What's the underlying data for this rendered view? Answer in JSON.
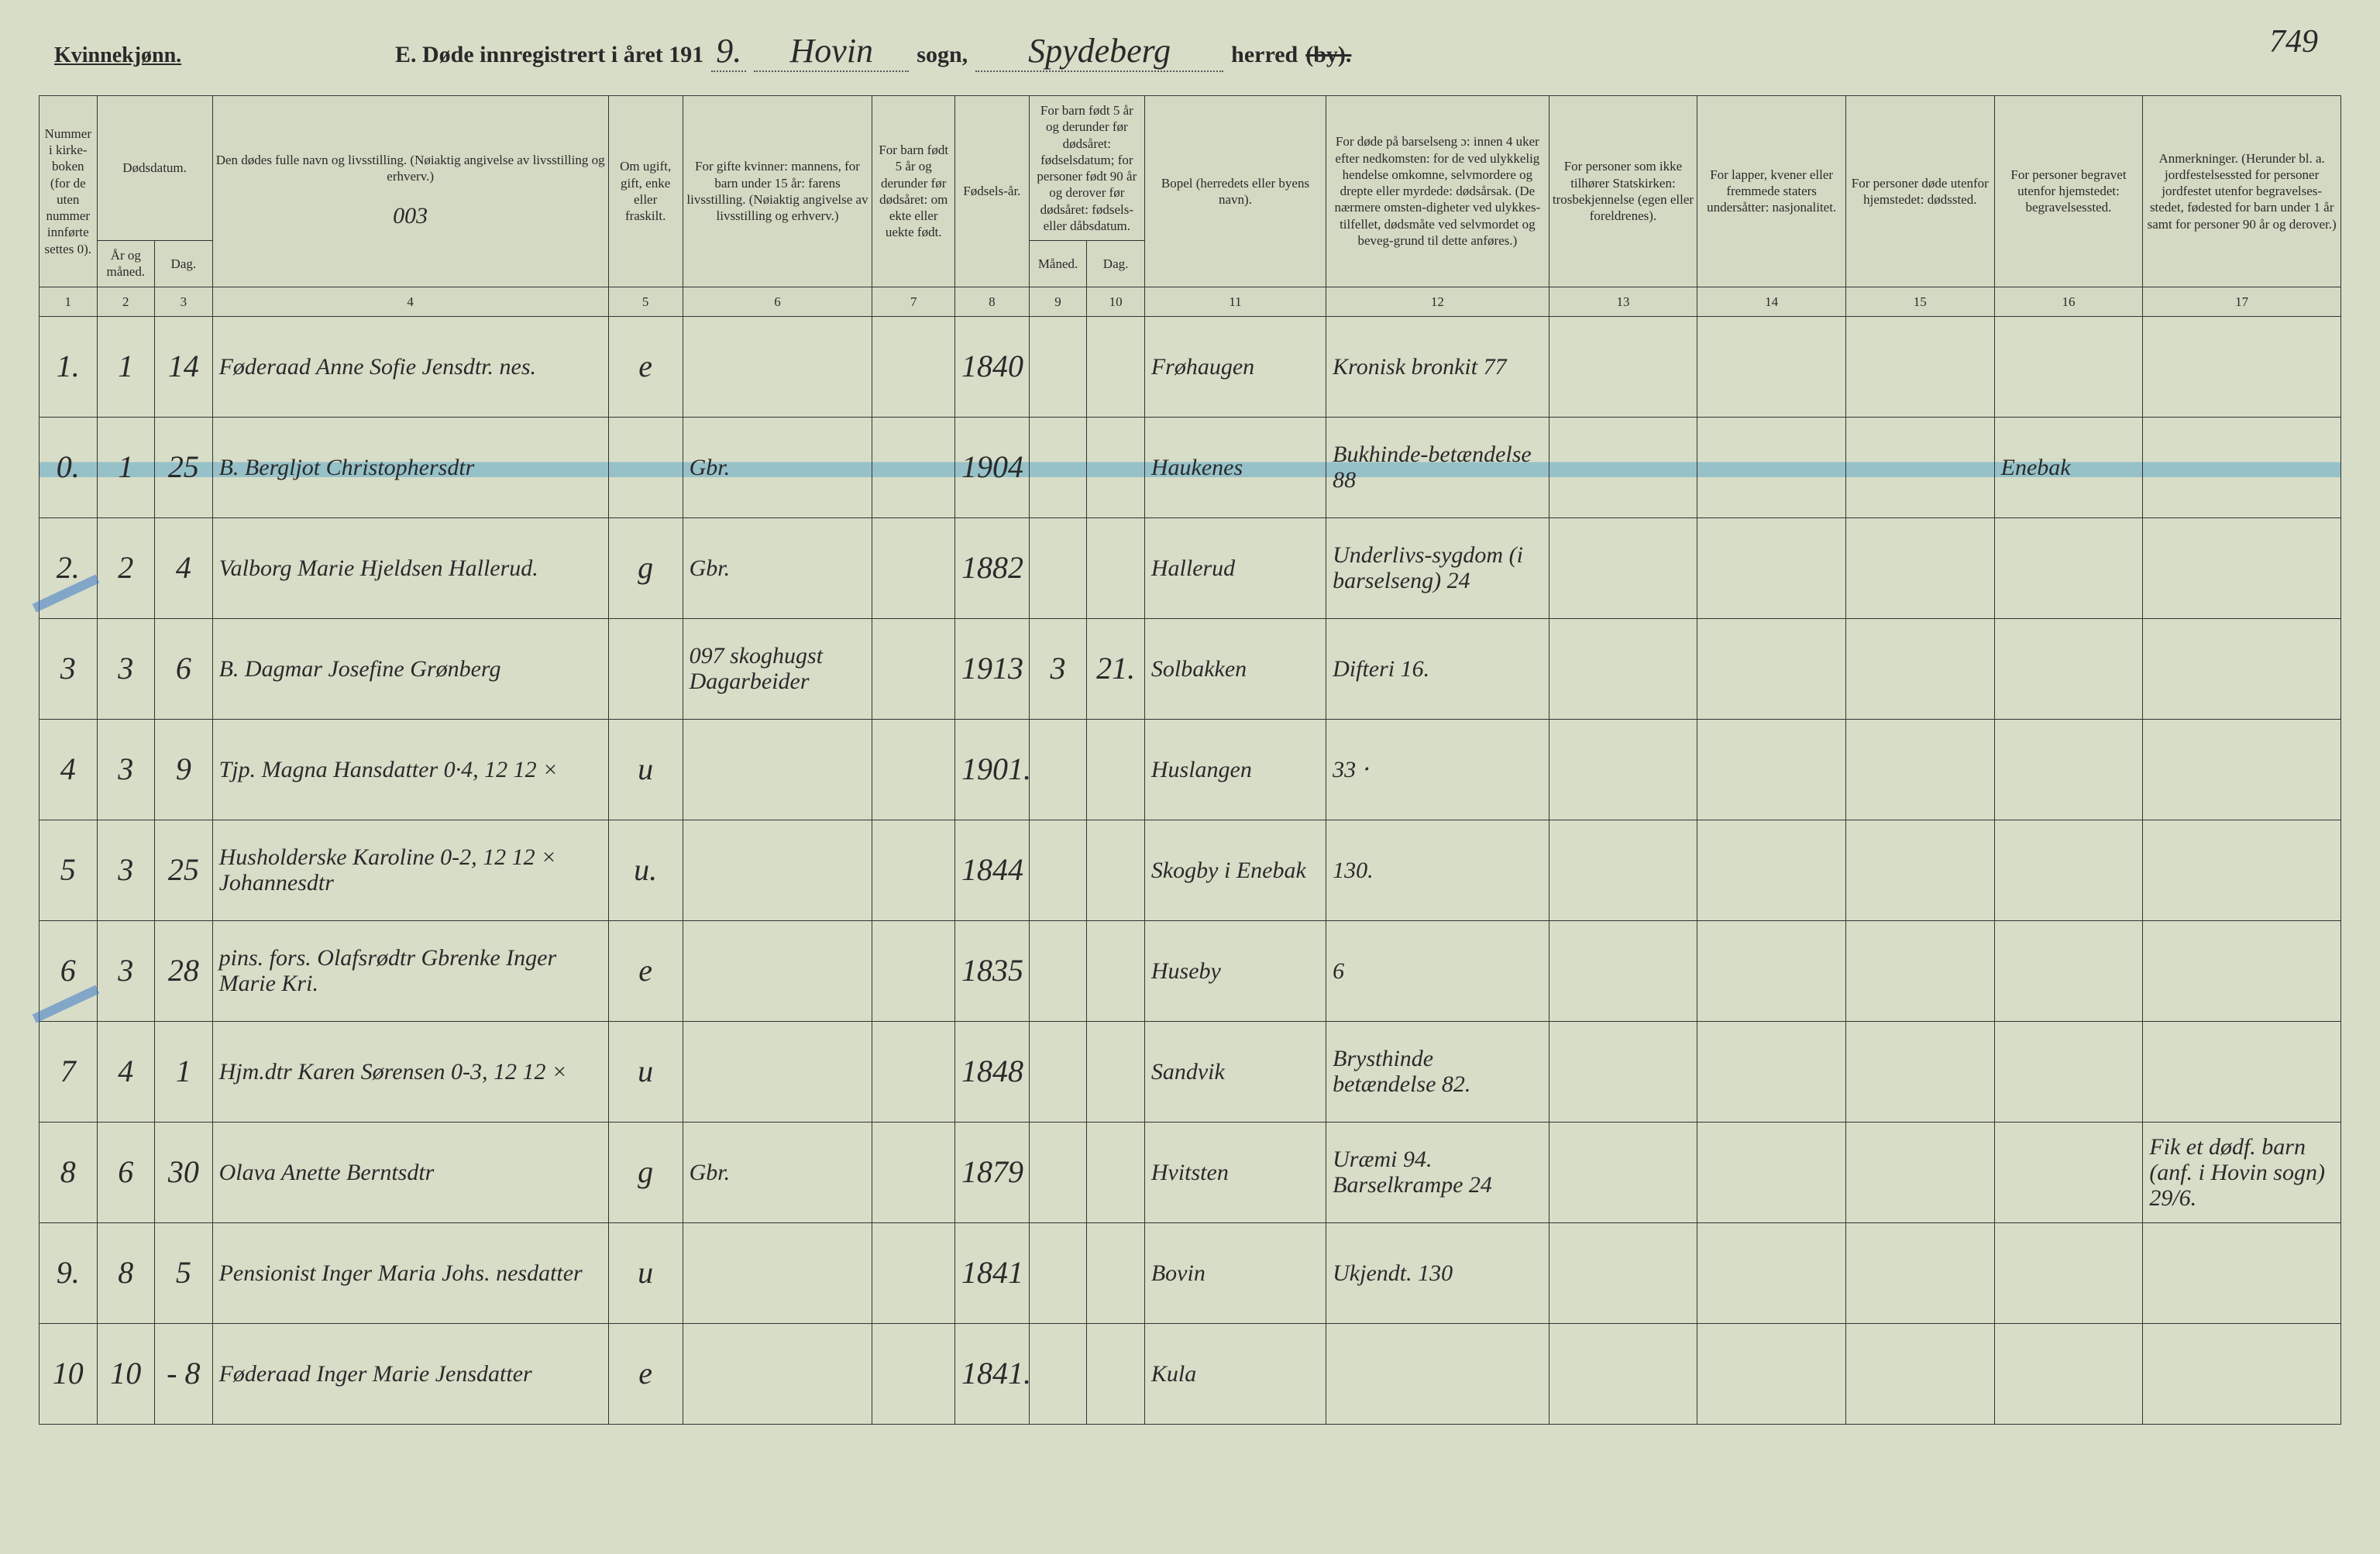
{
  "page_number": "749",
  "header": {
    "gender": "Kvinnekjønn.",
    "title_prefix": "E. Døde innregistrert i året 191",
    "year_digit": "9.",
    "parish_word": "sogn,",
    "parish_value": "Hovin",
    "district_word": "herred",
    "district_value": "Spydeberg",
    "struck_word": "(by)."
  },
  "columns": {
    "c1": "Nummer i kirke-boken (for de uten nummer innførte settes 0).",
    "c2_group": "Dødsdatum.",
    "c2": "År og måned.",
    "c3": "Dag.",
    "c4": "Den dødes fulle navn og livsstilling. (Nøiaktig angivelse av livsstilling og erhverv.)",
    "c4_note": "003",
    "c5": "Om ugift, gift, enke eller fraskilt.",
    "c6": "For gifte kvinner: mannens, for barn under 15 år: farens livsstilling. (Nøiaktig angivelse av livsstilling og erhverv.)",
    "c7": "For barn født 5 år og derunder før dødsåret: om ekte eller uekte født.",
    "c8": "Fødsels-år.",
    "c9_group": "For barn født 5 år og derunder før dødsåret: fødselsdatum; for personer født 90 år og derover før dødsåret: fødsels- eller dåbsdatum.",
    "c9": "Måned.",
    "c10": "Dag.",
    "c11": "Bopel (herredets eller byens navn).",
    "c12": "For døde på barselseng ɔ: innen 4 uker efter nedkomsten: for de ved ulykkelig hendelse omkomne, selvmordere og drepte eller myrdede: dødsårsak. (De nærmere omsten-digheter ved ulykkes-tilfellet, dødsmåte ved selvmordet og beveg-grund til dette anføres.)",
    "c13": "For personer som ikke tilhører Statskirken: trosbekjennelse (egen eller foreldrenes).",
    "c14": "For lapper, kvener eller fremmede staters undersåtter: nasjonalitet.",
    "c15": "For personer døde utenfor hjemstedet: dødssted.",
    "c16": "For personer begravet utenfor hjemstedet: begravelsessted.",
    "c17": "Anmerkninger. (Herunder bl. a. jordfestelsessted for personer jordfestet utenfor begravelses-stedet, fødested for barn under 1 år samt for personer 90 år og derover.)"
  },
  "colnums": [
    "1",
    "2",
    "3",
    "4",
    "5",
    "6",
    "7",
    "8",
    "9",
    "10",
    "11",
    "12",
    "13",
    "14",
    "15",
    "16",
    "17"
  ],
  "rows": [
    {
      "n": "1.",
      "mo": "1",
      "day": "14",
      "name": "Føderaad Anne Sofie Jensdtr.   nes.",
      "ms": "e",
      "father": "",
      "legit": "",
      "byr": "1840",
      "bmo": "",
      "bday": "",
      "res": "Frøhaugen",
      "cause": "Kronisk bronkit 77",
      "c13": "",
      "c14": "",
      "c15": "",
      "c16": "",
      "c17": ""
    },
    {
      "n": "0.",
      "mo": "1",
      "day": "25",
      "name": "B. Bergljot Christophersdtr",
      "ms": "",
      "father": "Gbr.",
      "legit": "",
      "byr": "1904",
      "bmo": "",
      "bday": "",
      "res": "Haukenes",
      "cause": "Bukhinde-betændelse 88",
      "c13": "",
      "c14": "",
      "c15": "",
      "c16": "Enebak",
      "c17": "",
      "highlight": true
    },
    {
      "n": "2.",
      "mo": "2",
      "day": "4",
      "name": "Valborg Marie Hjeldsen   Hallerud.",
      "ms": "g",
      "father": "Gbr.",
      "legit": "",
      "byr": "1882",
      "bmo": "",
      "bday": "",
      "res": "Hallerud",
      "cause": "Underlivs-sygdom (i barselseng) 24",
      "c13": "",
      "c14": "",
      "c15": "",
      "c16": "",
      "c17": ""
    },
    {
      "n": "3",
      "mo": "3",
      "day": "6",
      "name": "B. Dagmar Josefine Grønberg",
      "ms": "",
      "father": "097 skoghugst Dagarbeider",
      "legit": "",
      "byr": "1913",
      "bmo": "3",
      "bday": "21.",
      "res": "Solbakken",
      "cause": "Difteri 16.",
      "c13": "",
      "c14": "",
      "c15": "",
      "c16": "",
      "c17": ""
    },
    {
      "n": "4",
      "mo": "3",
      "day": "9",
      "name": "Tjp. Magna Hansdatter   0·4, 12 12 ×",
      "ms": "u",
      "father": "",
      "legit": "",
      "byr": "1901.",
      "bmo": "",
      "bday": "",
      "res": "Huslangen",
      "cause": "33 ⸱",
      "c13": "",
      "c14": "",
      "c15": "",
      "c16": "",
      "c17": ""
    },
    {
      "n": "5",
      "mo": "3",
      "day": "25",
      "name": "Husholderske Karoline   0-2, 12 12 × Johannesdtr",
      "ms": "u.",
      "father": "",
      "legit": "",
      "byr": "1844",
      "bmo": "",
      "bday": "",
      "res": "Skogby i Enebak",
      "cause": "130.",
      "c13": "",
      "c14": "",
      "c15": "",
      "c16": "",
      "c17": ""
    },
    {
      "n": "6",
      "mo": "3",
      "day": "28",
      "name": "pins. fors.  Olafsrødtr  Gbrenke Inger Marie Kri.",
      "ms": "e",
      "father": "",
      "legit": "",
      "byr": "1835",
      "bmo": "",
      "bday": "",
      "res": "Huseby",
      "cause": "6",
      "c13": "",
      "c14": "",
      "c15": "",
      "c16": "",
      "c17": ""
    },
    {
      "n": "7",
      "mo": "4",
      "day": "1",
      "name": "Hjm.dtr Karen Sørensen   0-3, 12 12 ×",
      "ms": "u",
      "father": "",
      "legit": "",
      "byr": "1848",
      "bmo": "",
      "bday": "",
      "res": "Sandvik",
      "cause": "Brysthinde betændelse 82.",
      "c13": "",
      "c14": "",
      "c15": "",
      "c16": "",
      "c17": ""
    },
    {
      "n": "8",
      "mo": "6",
      "day": "30",
      "name": "Olava Anette Berntsdtr",
      "ms": "g",
      "father": "Gbr.",
      "legit": "",
      "byr": "1879",
      "bmo": "",
      "bday": "",
      "res": "Hvitsten",
      "cause": "Uræmi 94. Barselkrampe 24",
      "c13": "",
      "c14": "",
      "c15": "",
      "c16": "",
      "c17": "Fik et dødf. barn (anf. i Hovin sogn) 29/6."
    },
    {
      "n": "9.",
      "mo": "8",
      "day": "5",
      "name": "Pensionist Inger Maria Johs.   nesdatter",
      "ms": "u",
      "father": "",
      "legit": "",
      "byr": "1841",
      "bmo": "",
      "bday": "",
      "res": "Bovin",
      "cause": "Ukjendt. 130",
      "c13": "",
      "c14": "",
      "c15": "",
      "c16": "",
      "c17": ""
    },
    {
      "n": "10",
      "mo": "10",
      "day": "- 8",
      "name": "Føderaad Inger Marie Jensdatter",
      "ms": "e",
      "father": "",
      "legit": "",
      "byr": "1841.",
      "bmo": "",
      "bday": "",
      "res": "Kula",
      "cause": "",
      "c13": "",
      "c14": "",
      "c15": "",
      "c16": "",
      "c17": ""
    }
  ]
}
